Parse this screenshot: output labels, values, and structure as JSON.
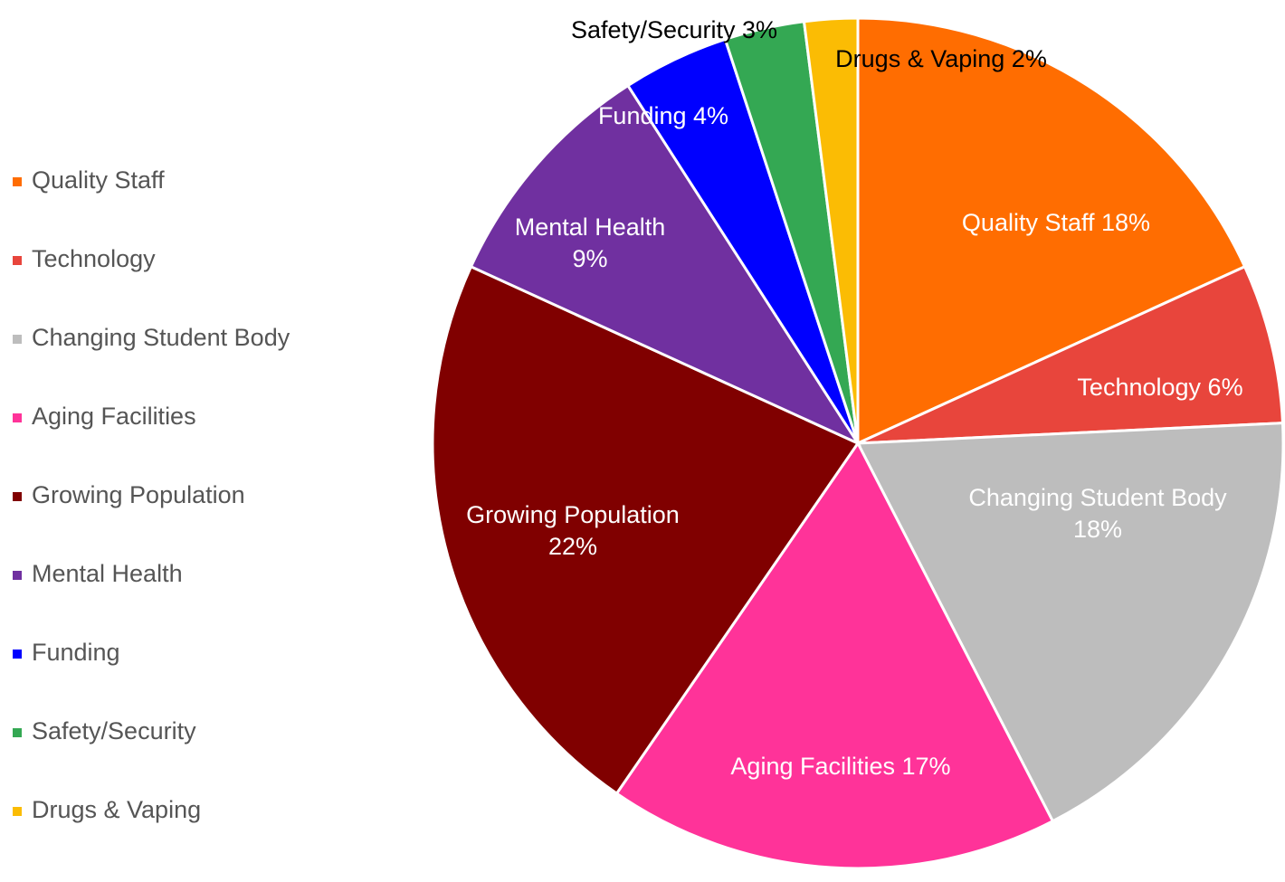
{
  "chart_data": {
    "type": "pie",
    "categories": [
      "Quality Staff",
      "Technology",
      "Changing Student Body",
      "Aging Facilities",
      "Growing Population",
      "Mental Health",
      "Funding",
      "Safety/Security",
      "Drugs & Vaping"
    ],
    "values": [
      18,
      6,
      18,
      17,
      22,
      9,
      4,
      3,
      2
    ],
    "value_labels": [
      "18%",
      "6%",
      "18%",
      "17%",
      "22%",
      "9%",
      "4%",
      "3%",
      "2%"
    ],
    "colors": [
      "#ff6d01",
      "#e8453c",
      "#bdbdbd",
      "#ff3399",
      "#800000",
      "#7030a0",
      "#0000ff",
      "#34a853",
      "#fbbc04"
    ],
    "legend": "left"
  }
}
